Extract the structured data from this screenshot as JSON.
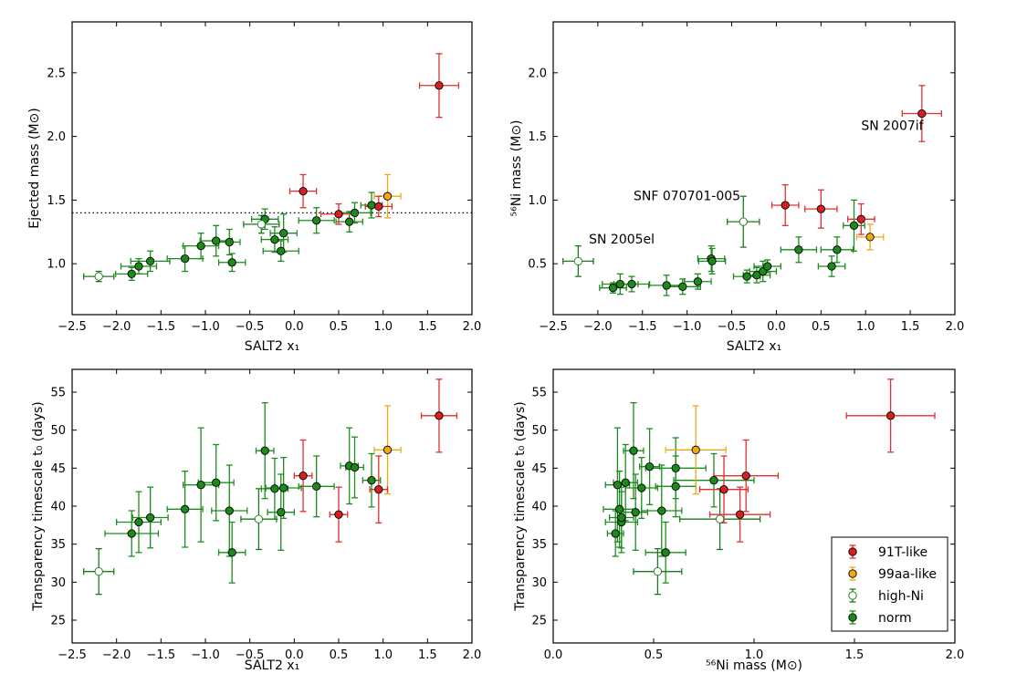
{
  "colors": {
    "91T-like": "#d62020",
    "99aa-like": "#f2a812",
    "high-Ni": "#ffffff",
    "norm": "#1b8a1b",
    "high-Ni_edge": "#1b7a1b",
    "91T-like_bar": "#e03030",
    "99aa-like_bar": "#f0a818",
    "norm_bar": "#1e8c1e"
  },
  "chart_data": [
    {
      "id": "p1",
      "type": "scatter",
      "xlabel": "SALT2 x₁",
      "ylabel": "Ejected mass (M⊙)",
      "xlim": [
        -2.5,
        2.0
      ],
      "ylim": [
        0.6,
        2.9
      ],
      "xticks": [
        -2.5,
        -2.0,
        -1.5,
        -1.0,
        -0.5,
        0.0,
        0.5,
        1.0,
        1.5,
        2.0
      ],
      "xtick_labels": [
        "−2.5",
        "−2.0",
        "−1.5",
        "−1.0",
        "−0.5",
        "0.0",
        "0.5",
        "1.0",
        "1.5",
        "2.0"
      ],
      "yticks": [
        1.0,
        1.5,
        2.0,
        2.5
      ],
      "ytick_labels": [
        "1.0",
        "1.5",
        "2.0",
        "2.5"
      ],
      "hline": 1.4,
      "annotations": [],
      "points": [
        {
          "g": "norm",
          "x": -1.83,
          "y": 0.92,
          "xe": 0.18,
          "ye": 0.05
        },
        {
          "g": "norm",
          "x": -1.75,
          "y": 0.98,
          "xe": 0.2,
          "ye": 0.06
        },
        {
          "g": "norm",
          "x": -1.62,
          "y": 1.02,
          "xe": 0.22,
          "ye": 0.08
        },
        {
          "g": "norm",
          "x": -1.23,
          "y": 1.04,
          "xe": 0.2,
          "ye": 0.1
        },
        {
          "g": "norm",
          "x": -1.05,
          "y": 1.14,
          "xe": 0.2,
          "ye": 0.1
        },
        {
          "g": "norm",
          "x": -0.88,
          "y": 1.18,
          "xe": 0.18,
          "ye": 0.12
        },
        {
          "g": "norm",
          "x": -0.73,
          "y": 1.17,
          "xe": 0.12,
          "ye": 0.1
        },
        {
          "g": "norm",
          "x": -0.7,
          "y": 1.01,
          "xe": 0.15,
          "ye": 0.07
        },
        {
          "g": "norm",
          "x": -0.33,
          "y": 1.35,
          "xe": 0.15,
          "ye": 0.08
        },
        {
          "g": "norm",
          "x": -0.22,
          "y": 1.19,
          "xe": 0.15,
          "ye": 0.1
        },
        {
          "g": "norm",
          "x": -0.15,
          "y": 1.1,
          "xe": 0.2,
          "ye": 0.08
        },
        {
          "g": "norm",
          "x": -0.12,
          "y": 1.24,
          "xe": 0.15,
          "ye": 0.15
        },
        {
          "g": "norm",
          "x": 0.25,
          "y": 1.34,
          "xe": 0.2,
          "ye": 0.1
        },
        {
          "g": "norm",
          "x": 0.62,
          "y": 1.33,
          "xe": 0.15,
          "ye": 0.08
        },
        {
          "g": "norm",
          "x": 0.68,
          "y": 1.4,
          "xe": 0.18,
          "ye": 0.08
        },
        {
          "g": "norm",
          "x": 0.87,
          "y": 1.46,
          "xe": 0.12,
          "ye": 0.1
        },
        {
          "g": "high-Ni",
          "x": -2.2,
          "y": 0.9,
          "xe": 0.17,
          "ye": 0.04
        },
        {
          "g": "high-Ni",
          "x": -0.37,
          "y": 1.31,
          "xe": 0.2,
          "ye": 0.07
        },
        {
          "g": "99aa-like",
          "x": 1.05,
          "y": 1.53,
          "xe": 0.15,
          "ye": 0.17
        },
        {
          "g": "91T-like",
          "x": 0.1,
          "y": 1.57,
          "xe": 0.15,
          "ye": 0.13
        },
        {
          "g": "91T-like",
          "x": 0.5,
          "y": 1.39,
          "xe": 0.2,
          "ye": 0.08
        },
        {
          "g": "91T-like",
          "x": 0.95,
          "y": 1.45,
          "xe": 0.15,
          "ye": 0.08
        },
        {
          "g": "91T-like",
          "x": 1.63,
          "y": 2.4,
          "xe": 0.22,
          "ye": 0.25
        }
      ]
    },
    {
      "id": "p2",
      "type": "scatter",
      "xlabel": "SALT2 x₁",
      "ylabel": "⁵⁶Ni mass (M⊙)",
      "xlim": [
        -2.5,
        2.0
      ],
      "ylim": [
        0.1,
        2.4
      ],
      "xticks": [
        -2.5,
        -2.0,
        -1.5,
        -1.0,
        -0.5,
        0.0,
        0.5,
        1.0,
        1.5,
        2.0
      ],
      "xtick_labels": [
        "−2.5",
        "−2.0",
        "−1.5",
        "−1.0",
        "−0.5",
        "0.0",
        "0.5",
        "1.0",
        "1.5",
        "2.0"
      ],
      "yticks": [
        0.5,
        1.0,
        1.5,
        2.0
      ],
      "ytick_labels": [
        "0.5",
        "1.0",
        "1.5",
        "2.0"
      ],
      "hline": null,
      "annotations": [
        {
          "text": "SN 2007if",
          "x": 0.95,
          "y": 1.55
        },
        {
          "text": "SNF 070701-005",
          "x": -1.6,
          "y": 1.0
        },
        {
          "text": "SN 2005el",
          "x": -2.1,
          "y": 0.66
        }
      ],
      "points": [
        {
          "g": "norm",
          "x": -1.83,
          "y": 0.31,
          "xe": 0.15,
          "ye": 0.04
        },
        {
          "g": "norm",
          "x": -1.75,
          "y": 0.34,
          "xe": 0.2,
          "ye": 0.08
        },
        {
          "g": "norm",
          "x": -1.62,
          "y": 0.34,
          "xe": 0.2,
          "ye": 0.06
        },
        {
          "g": "norm",
          "x": -1.23,
          "y": 0.33,
          "xe": 0.2,
          "ye": 0.08
        },
        {
          "g": "norm",
          "x": -1.05,
          "y": 0.32,
          "xe": 0.2,
          "ye": 0.06
        },
        {
          "g": "norm",
          "x": -0.88,
          "y": 0.36,
          "xe": 0.15,
          "ye": 0.06
        },
        {
          "g": "norm",
          "x": -0.73,
          "y": 0.54,
          "xe": 0.15,
          "ye": 0.1
        },
        {
          "g": "norm",
          "x": -0.72,
          "y": 0.52,
          "xe": 0.15,
          "ye": 0.1
        },
        {
          "g": "norm",
          "x": -0.33,
          "y": 0.4,
          "xe": 0.15,
          "ye": 0.05
        },
        {
          "g": "norm",
          "x": -0.22,
          "y": 0.41,
          "xe": 0.15,
          "ye": 0.06
        },
        {
          "g": "norm",
          "x": -0.15,
          "y": 0.44,
          "xe": 0.15,
          "ye": 0.08
        },
        {
          "g": "norm",
          "x": -0.1,
          "y": 0.48,
          "xe": 0.15,
          "ye": 0.05
        },
        {
          "g": "norm",
          "x": 0.25,
          "y": 0.61,
          "xe": 0.2,
          "ye": 0.1
        },
        {
          "g": "norm",
          "x": 0.62,
          "y": 0.48,
          "xe": 0.15,
          "ye": 0.08
        },
        {
          "g": "norm",
          "x": 0.68,
          "y": 0.61,
          "xe": 0.18,
          "ye": 0.1
        },
        {
          "g": "norm",
          "x": 0.87,
          "y": 0.8,
          "xe": 0.12,
          "ye": 0.2
        },
        {
          "g": "high-Ni",
          "x": -2.22,
          "y": 0.52,
          "xe": 0.17,
          "ye": 0.12
        },
        {
          "g": "high-Ni",
          "x": -0.37,
          "y": 0.83,
          "xe": 0.18,
          "ye": 0.2
        },
        {
          "g": "99aa-like",
          "x": 1.05,
          "y": 0.71,
          "xe": 0.15,
          "ye": 0.1
        },
        {
          "g": "91T-like",
          "x": 0.1,
          "y": 0.96,
          "xe": 0.15,
          "ye": 0.16
        },
        {
          "g": "91T-like",
          "x": 0.5,
          "y": 0.93,
          "xe": 0.18,
          "ye": 0.15
        },
        {
          "g": "91T-like",
          "x": 0.95,
          "y": 0.85,
          "xe": 0.15,
          "ye": 0.12
        },
        {
          "g": "91T-like",
          "x": 1.63,
          "y": 1.68,
          "xe": 0.22,
          "ye": 0.22
        }
      ]
    },
    {
      "id": "p3",
      "type": "scatter",
      "xlabel": "SALT2 x₁",
      "ylabel": "Transparency timescale t₀ (days)",
      "xlim": [
        -2.5,
        2.0
      ],
      "ylim": [
        22,
        58
      ],
      "xticks": [
        -2.5,
        -2.0,
        -1.5,
        -1.0,
        -0.5,
        0.0,
        0.5,
        1.0,
        1.5,
        2.0
      ],
      "xtick_labels": [
        "−2.5",
        "−2.0",
        "−1.5",
        "−1.0",
        "−0.5",
        "0.0",
        "0.5",
        "1.0",
        "1.5",
        "2.0"
      ],
      "yticks": [
        25,
        30,
        35,
        40,
        45,
        50,
        55
      ],
      "ytick_labels": [
        "25",
        "30",
        "35",
        "40",
        "45",
        "50",
        "55"
      ],
      "hline": null,
      "annotations": [],
      "points": [
        {
          "g": "high-Ni",
          "x": -2.2,
          "y": 31.4,
          "xe": 0.17,
          "ye": 3.0
        },
        {
          "g": "norm",
          "x": -1.83,
          "y": 36.4,
          "xe": 0.3,
          "ye": 3.0
        },
        {
          "g": "norm",
          "x": -1.75,
          "y": 37.9,
          "xe": 0.25,
          "ye": 4.0
        },
        {
          "g": "norm",
          "x": -1.62,
          "y": 38.5,
          "xe": 0.2,
          "ye": 4.0
        },
        {
          "g": "norm",
          "x": -1.23,
          "y": 39.6,
          "xe": 0.2,
          "ye": 5.0
        },
        {
          "g": "norm",
          "x": -1.05,
          "y": 42.8,
          "xe": 0.2,
          "ye": 7.5
        },
        {
          "g": "norm",
          "x": -0.88,
          "y": 43.1,
          "xe": 0.2,
          "ye": 5.0
        },
        {
          "g": "norm",
          "x": -0.73,
          "y": 39.4,
          "xe": 0.2,
          "ye": 6.0
        },
        {
          "g": "norm",
          "x": -0.7,
          "y": 33.9,
          "xe": 0.15,
          "ye": 4.0
        },
        {
          "g": "high-Ni",
          "x": -0.4,
          "y": 38.3,
          "xe": 0.2,
          "ye": 4.0
        },
        {
          "g": "norm",
          "x": -0.33,
          "y": 47.3,
          "xe": 0.1,
          "ye": 6.3
        },
        {
          "g": "norm",
          "x": -0.22,
          "y": 42.3,
          "xe": 0.15,
          "ye": 4.0
        },
        {
          "g": "norm",
          "x": -0.15,
          "y": 39.2,
          "xe": 0.15,
          "ye": 5.0
        },
        {
          "g": "norm",
          "x": -0.12,
          "y": 42.4,
          "xe": 0.2,
          "ye": 4.0
        },
        {
          "g": "norm",
          "x": 0.25,
          "y": 42.6,
          "xe": 0.2,
          "ye": 4.0
        },
        {
          "g": "norm",
          "x": 0.62,
          "y": 45.3,
          "xe": 0.1,
          "ye": 5.0
        },
        {
          "g": "norm",
          "x": 0.68,
          "y": 45.1,
          "xe": 0.1,
          "ye": 4.0
        },
        {
          "g": "norm",
          "x": 0.87,
          "y": 43.4,
          "xe": 0.1,
          "ye": 3.5
        },
        {
          "g": "99aa-like",
          "x": 1.05,
          "y": 47.4,
          "xe": 0.15,
          "ye": 5.8
        },
        {
          "g": "91T-like",
          "x": 0.1,
          "y": 44.0,
          "xe": 0.1,
          "ye": 4.7
        },
        {
          "g": "91T-like",
          "x": 0.5,
          "y": 38.9,
          "xe": 0.1,
          "ye": 3.6
        },
        {
          "g": "91T-like",
          "x": 0.95,
          "y": 42.2,
          "xe": 0.1,
          "ye": 4.4
        },
        {
          "g": "91T-like",
          "x": 1.63,
          "y": 51.9,
          "xe": 0.2,
          "ye": 4.8
        }
      ]
    },
    {
      "id": "p4",
      "type": "scatter",
      "xlabel": "⁵⁶Ni mass (M⊙)",
      "ylabel": "Transparency timescale t₀ (days)",
      "xlim": [
        0.0,
        2.0
      ],
      "ylim": [
        22,
        58
      ],
      "xticks": [
        0.0,
        0.5,
        1.0,
        1.5,
        2.0
      ],
      "xtick_labels": [
        "0.0",
        "0.5",
        "1.0",
        "1.5",
        "2.0"
      ],
      "yticks": [
        25,
        30,
        35,
        40,
        45,
        50,
        55
      ],
      "ytick_labels": [
        "25",
        "30",
        "35",
        "40",
        "45",
        "50",
        "55"
      ],
      "hline": null,
      "annotations": [],
      "points": [
        {
          "g": "norm",
          "x": 0.31,
          "y": 36.4,
          "xe": 0.04,
          "ye": 3.0
        },
        {
          "g": "norm",
          "x": 0.34,
          "y": 37.9,
          "xe": 0.08,
          "ye": 4.0
        },
        {
          "g": "norm",
          "x": 0.34,
          "y": 38.5,
          "xe": 0.06,
          "ye": 4.0
        },
        {
          "g": "norm",
          "x": 0.33,
          "y": 39.6,
          "xe": 0.08,
          "ye": 5.0
        },
        {
          "g": "norm",
          "x": 0.32,
          "y": 42.8,
          "xe": 0.06,
          "ye": 7.5
        },
        {
          "g": "norm",
          "x": 0.36,
          "y": 43.1,
          "xe": 0.06,
          "ye": 5.0
        },
        {
          "g": "norm",
          "x": 0.54,
          "y": 39.4,
          "xe": 0.1,
          "ye": 6.0
        },
        {
          "g": "norm",
          "x": 0.56,
          "y": 33.9,
          "xe": 0.1,
          "ye": 4.0
        },
        {
          "g": "norm",
          "x": 0.4,
          "y": 47.3,
          "xe": 0.05,
          "ye": 6.3
        },
        {
          "g": "norm",
          "x": 0.41,
          "y": 39.2,
          "xe": 0.06,
          "ye": 5.0
        },
        {
          "g": "norm",
          "x": 0.44,
          "y": 42.4,
          "xe": 0.08,
          "ye": 4.0
        },
        {
          "g": "norm",
          "x": 0.48,
          "y": 45.2,
          "xe": 0.05,
          "ye": 5.0
        },
        {
          "g": "norm",
          "x": 0.61,
          "y": 42.6,
          "xe": 0.1,
          "ye": 4.0
        },
        {
          "g": "norm",
          "x": 0.61,
          "y": 45.0,
          "xe": 0.15,
          "ye": 4.0
        },
        {
          "g": "norm",
          "x": 0.8,
          "y": 43.4,
          "xe": 0.2,
          "ye": 3.5
        },
        {
          "g": "high-Ni",
          "x": 0.52,
          "y": 31.4,
          "xe": 0.12,
          "ye": 3.0
        },
        {
          "g": "high-Ni",
          "x": 0.83,
          "y": 38.3,
          "xe": 0.2,
          "ye": 4.0
        },
        {
          "g": "99aa-like",
          "x": 0.71,
          "y": 47.4,
          "xe": 0.15,
          "ye": 5.8
        },
        {
          "g": "91T-like",
          "x": 0.96,
          "y": 44.0,
          "xe": 0.16,
          "ye": 4.7
        },
        {
          "g": "91T-like",
          "x": 0.93,
          "y": 38.9,
          "xe": 0.15,
          "ye": 3.6
        },
        {
          "g": "91T-like",
          "x": 0.85,
          "y": 42.2,
          "xe": 0.12,
          "ye": 4.4
        },
        {
          "g": "91T-like",
          "x": 1.68,
          "y": 51.9,
          "xe": 0.22,
          "ye": 4.8
        }
      ]
    }
  ],
  "legend": {
    "placement": "bottom-right",
    "entries": [
      {
        "label": "91T-like",
        "g": "91T-like"
      },
      {
        "label": "99aa-like",
        "g": "99aa-like"
      },
      {
        "label": "high-Ni",
        "g": "high-Ni"
      },
      {
        "label": "norm",
        "g": "norm"
      }
    ]
  }
}
